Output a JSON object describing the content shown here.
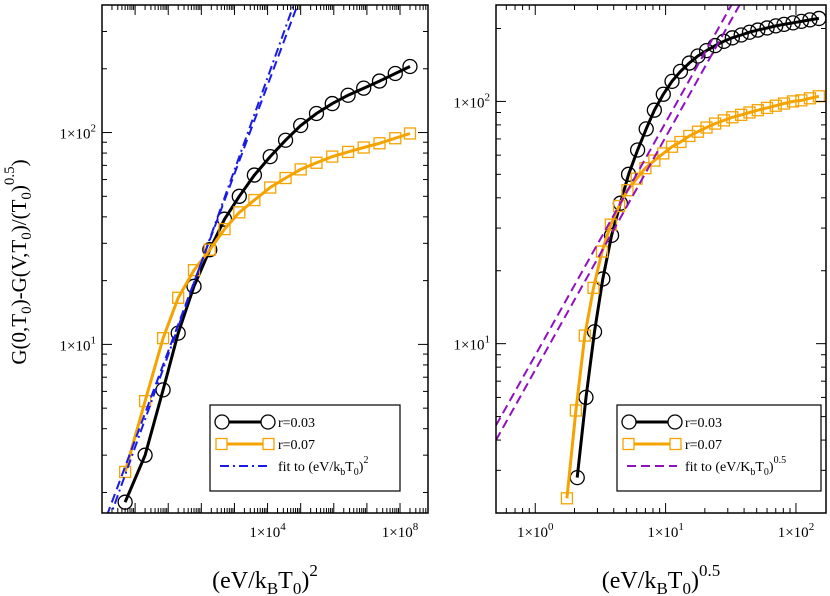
{
  "chart_data": [
    {
      "type": "line",
      "panel": "left",
      "xlabel": "(eV/k_BT_0)^2",
      "ylabel": "G(0,T_0)-G(V,T_0)/(T_0^0.5)",
      "xscale": "log",
      "yscale": "log",
      "xlim": [
        0.1,
        700000000
      ],
      "ylim": [
        1.6,
        400
      ],
      "xticks": [
        {
          "value": 10000,
          "label": "1×10",
          "exp": "4"
        },
        {
          "value": 100000000,
          "label": "1×10",
          "exp": "8"
        }
      ],
      "yticks": [
        {
          "value": 10,
          "label": "1×10",
          "exp": "1"
        },
        {
          "value": 100,
          "label": "1×10",
          "exp": "2"
        }
      ],
      "series": [
        {
          "name": "r=0.03",
          "color": "#000000",
          "marker": "circle",
          "x": [
            0.5,
            2,
            7,
            20,
            60,
            180,
            500,
            1400,
            4000,
            12000,
            35000,
            100000,
            300000,
            900000,
            2700000,
            8000000,
            24000000,
            72000000,
            200000000
          ],
          "y": [
            1.8,
            3.0,
            6.1,
            11.3,
            18.8,
            28,
            39,
            50,
            63,
            77,
            92,
            108,
            123,
            137,
            150,
            162,
            175,
            190,
            205
          ]
        },
        {
          "name": "r=0.07",
          "color": "#f5a300",
          "marker": "square",
          "x": [
            0.5,
            2,
            7,
            20,
            60,
            180,
            500,
            1400,
            4000,
            12000,
            35000,
            100000,
            300000,
            900000,
            2700000,
            8000000,
            24000000,
            72000000,
            200000000
          ],
          "y": [
            2.5,
            5.4,
            10.7,
            16.6,
            22.4,
            28,
            35,
            42,
            48,
            55,
            61,
            67,
            72,
            77,
            81,
            85,
            89,
            94,
            99
          ]
        },
        {
          "name": "fit to (eV/k_bT_0)^2",
          "color": "#1a1ae6",
          "style": "dash-dot",
          "x": [
            0.1,
            80000
          ],
          "y": [
            1.2,
            450
          ]
        },
        {
          "color": "#1a1ae6",
          "style": "dashed",
          "x": [
            0.1,
            80000
          ],
          "y": [
            1.35,
            400
          ]
        }
      ],
      "legend": {
        "placement": "bottom-right",
        "entries": [
          "r=0.03",
          "r=0.07",
          "fit to (eV/k_bT_0)"
        ],
        "fit_exp": "2"
      }
    },
    {
      "type": "line",
      "panel": "right",
      "xlabel": "(eV/k_BT_0)^0.5",
      "xscale": "log",
      "yscale": "log",
      "xlim": [
        0.5,
        170
      ],
      "ylim": [
        2,
        250
      ],
      "xticks": [
        {
          "value": 1,
          "label": "1×10",
          "exp": "0"
        },
        {
          "value": 10,
          "label": "1×10",
          "exp": "1"
        },
        {
          "value": 100,
          "label": "1×10",
          "exp": "2"
        }
      ],
      "yticks": [
        {
          "value": 10,
          "label": "1×10",
          "exp": "1"
        },
        {
          "value": 100,
          "label": "1×10",
          "exp": "2"
        }
      ],
      "series": [
        {
          "name": "r=0.03",
          "color": "#000000",
          "marker": "circle",
          "x": [
            2.1,
            2.45,
            2.85,
            3.3,
            3.85,
            4.5,
            5.2,
            6.1,
            7.1,
            8.2,
            9.6,
            11.2,
            13.0,
            15.2,
            17.7,
            20.6,
            24,
            28,
            32.5,
            38,
            44,
            51,
            60,
            70,
            81,
            95,
            110,
            128,
            150
          ],
          "y": [
            2.8,
            6.0,
            11.2,
            18.5,
            28,
            38,
            50,
            63,
            77,
            92,
            107,
            121,
            133,
            144,
            154,
            162,
            170,
            177,
            183,
            188,
            193,
            197,
            201,
            205,
            208,
            211,
            214,
            217,
            220
          ]
        },
        {
          "name": "r=0.07",
          "color": "#f5a300",
          "marker": "square",
          "x": [
            1.75,
            2.05,
            2.4,
            2.8,
            3.25,
            3.8,
            4.4,
            5.1,
            6.0,
            7.0,
            8.2,
            9.6,
            11.2,
            13.0,
            15.2,
            17.7,
            20.6,
            24,
            28,
            32.5,
            38,
            44,
            51,
            60,
            70,
            81,
            95,
            110,
            128,
            150
          ],
          "y": [
            2.3,
            5.3,
            10.8,
            17,
            24,
            31,
            37,
            43,
            48,
            53,
            57,
            61,
            65,
            68,
            72,
            75,
            78,
            81,
            83.5,
            86,
            88,
            90,
            92,
            94,
            96,
            98,
            100,
            101,
            103,
            105
          ]
        },
        {
          "name": "fit to (eV/K_bT_0)^0.5",
          "color": "#9010c0",
          "style": "dashed",
          "x": [
            0.5,
            40
          ],
          "y": [
            4.0,
            270
          ]
        },
        {
          "color": "#9010c0",
          "style": "dashed",
          "x": [
            0.5,
            40
          ],
          "y": [
            4.6,
            310
          ]
        }
      ],
      "legend": {
        "placement": "bottom-right",
        "entries": [
          "r=0.03",
          "r=0.07",
          "fit to (eV/K_bT_0)"
        ],
        "fit_exp": "0.5"
      }
    }
  ]
}
